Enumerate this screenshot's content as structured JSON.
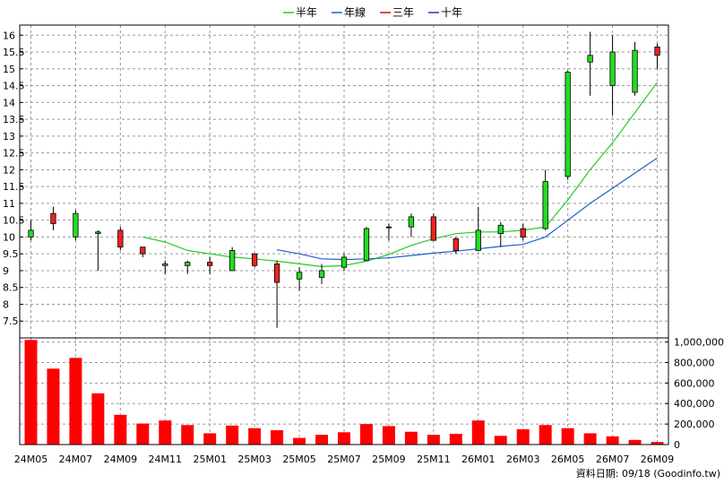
{
  "chart_data": {
    "type": "candlestick+bar",
    "legend": {
      "position": "top",
      "items": [
        {
          "label": "半年",
          "color": "#22cc22"
        },
        {
          "label": "年線",
          "color": "#1f5fd0"
        },
        {
          "label": "三年",
          "color": "#cc1111"
        },
        {
          "label": "十年",
          "color": "#4422aa"
        }
      ]
    },
    "x_categories": [
      "24M05",
      "24M06",
      "24M07",
      "24M08",
      "24M09",
      "24M10",
      "24M11",
      "24M12",
      "25M01",
      "25M02",
      "25M03",
      "25M04",
      "25M05",
      "25M06",
      "25M07",
      "25M08",
      "25M09",
      "25M10",
      "25M11",
      "25M12",
      "26M01",
      "26M02",
      "26M03",
      "26M04",
      "26M05",
      "26M06",
      "26M07",
      "26M08",
      "26M09"
    ],
    "x_tick_labels": [
      "24M05",
      "24M07",
      "24M09",
      "24M11",
      "25M01",
      "25M03",
      "25M05",
      "25M07",
      "25M09",
      "25M11",
      "26M01",
      "26M03",
      "26M05",
      "26M07",
      "26M09"
    ],
    "price_axis": {
      "ylim": [
        7.0,
        16.3
      ],
      "ticks": [
        "7.5",
        "8",
        "8.5",
        "9",
        "9.5",
        "10",
        "10.5",
        "11",
        "11.5",
        "12",
        "12.5",
        "13",
        "13.5",
        "14",
        "14.5",
        "15",
        "15.5",
        "16"
      ]
    },
    "volume_axis": {
      "ylim": [
        0,
        1040000
      ],
      "ticks": [
        "0",
        "200,000",
        "400,000",
        "600,000",
        "800,000",
        "1,000,000"
      ]
    },
    "candles": [
      {
        "m": "24M05",
        "o": 10.2,
        "h": 10.5,
        "l": 9.9,
        "c": 10.0
      },
      {
        "m": "24M06",
        "o": 10.4,
        "h": 10.9,
        "l": 10.2,
        "c": 10.7
      },
      {
        "m": "24M07",
        "o": 10.7,
        "h": 10.8,
        "l": 9.9,
        "c": 10.0
      },
      {
        "m": "24M08",
        "o": 10.15,
        "h": 10.2,
        "l": 9.0,
        "c": 10.1
      },
      {
        "m": "24M09",
        "o": 9.7,
        "h": 10.3,
        "l": 9.6,
        "c": 10.2
      },
      {
        "m": "24M10",
        "o": 9.5,
        "h": 9.7,
        "l": 9.4,
        "c": 9.7
      },
      {
        "m": "24M11",
        "o": 9.2,
        "h": 9.3,
        "l": 8.9,
        "c": 9.15
      },
      {
        "m": "24M12",
        "o": 9.25,
        "h": 9.3,
        "l": 8.9,
        "c": 9.15
      },
      {
        "m": "25M01",
        "o": 9.15,
        "h": 9.4,
        "l": 8.9,
        "c": 9.25
      },
      {
        "m": "25M02",
        "o": 9.6,
        "h": 9.7,
        "l": 9.0,
        "c": 9.0
      },
      {
        "m": "25M03",
        "o": 9.15,
        "h": 9.5,
        "l": 9.1,
        "c": 9.5
      },
      {
        "m": "25M04",
        "o": 8.65,
        "h": 9.3,
        "l": 7.3,
        "c": 9.2
      },
      {
        "m": "25M05",
        "o": 8.95,
        "h": 9.1,
        "l": 8.4,
        "c": 8.75
      },
      {
        "m": "25M06",
        "o": 9.0,
        "h": 9.2,
        "l": 8.6,
        "c": 8.8
      },
      {
        "m": "25M07",
        "o": 9.4,
        "h": 9.5,
        "l": 9.0,
        "c": 9.1
      },
      {
        "m": "25M08",
        "o": 10.25,
        "h": 10.3,
        "l": 9.3,
        "c": 9.3
      },
      {
        "m": "25M09",
        "o": 10.3,
        "h": 10.4,
        "l": 9.9,
        "c": 10.3
      },
      {
        "m": "25M10",
        "o": 10.6,
        "h": 10.7,
        "l": 10.0,
        "c": 10.3
      },
      {
        "m": "25M11",
        "o": 9.9,
        "h": 10.7,
        "l": 9.9,
        "c": 10.6
      },
      {
        "m": "25M12",
        "o": 9.6,
        "h": 10.0,
        "l": 9.5,
        "c": 9.95
      },
      {
        "m": "26M01",
        "o": 10.2,
        "h": 10.9,
        "l": 9.6,
        "c": 9.6
      },
      {
        "m": "26M02",
        "o": 10.35,
        "h": 10.45,
        "l": 9.7,
        "c": 10.1
      },
      {
        "m": "26M03",
        "o": 10.0,
        "h": 10.4,
        "l": 9.9,
        "c": 10.25
      },
      {
        "m": "26M04",
        "o": 11.65,
        "h": 12.0,
        "l": 10.2,
        "c": 10.25
      },
      {
        "m": "26M05",
        "o": 14.9,
        "h": 14.95,
        "l": 11.7,
        "c": 11.8
      },
      {
        "m": "26M06",
        "o": 15.4,
        "h": 16.1,
        "l": 14.2,
        "c": 15.2
      },
      {
        "m": "26M07",
        "o": 15.5,
        "h": 16.0,
        "l": 13.6,
        "c": 14.5
      },
      {
        "m": "26M08",
        "o": 15.55,
        "h": 15.8,
        "l": 14.2,
        "c": 14.3
      },
      {
        "m": "26M09",
        "o": 15.4,
        "h": 15.75,
        "l": 15.0,
        "c": 15.65
      }
    ],
    "ma_half_year": [
      null,
      null,
      null,
      null,
      null,
      10.0,
      9.85,
      9.6,
      9.5,
      9.4,
      9.35,
      9.28,
      9.2,
      9.12,
      9.15,
      9.28,
      9.48,
      9.75,
      9.95,
      10.1,
      10.15,
      10.15,
      10.2,
      10.3,
      11.1,
      12.0,
      12.8,
      13.7,
      14.6
    ],
    "ma_year": [
      null,
      null,
      null,
      null,
      null,
      null,
      null,
      null,
      null,
      null,
      null,
      9.62,
      9.5,
      9.35,
      9.33,
      9.35,
      9.38,
      9.45,
      9.52,
      9.58,
      9.65,
      9.72,
      9.78,
      10.0,
      10.5,
      11.0,
      11.45,
      11.9,
      12.35
    ],
    "volume": [
      1020000,
      740000,
      845000,
      500000,
      290000,
      205000,
      235000,
      190000,
      110000,
      185000,
      160000,
      140000,
      65000,
      95000,
      120000,
      200000,
      180000,
      125000,
      95000,
      105000,
      235000,
      85000,
      150000,
      190000,
      160000,
      110000,
      80000,
      45000,
      25000
    ],
    "footer_text": "資料日期: 09/18  (Goodinfo.tw)",
    "colors": {
      "up": "#ee2222",
      "down": "#22dd22",
      "volume": "#ff0000",
      "grid": "#999999"
    }
  }
}
